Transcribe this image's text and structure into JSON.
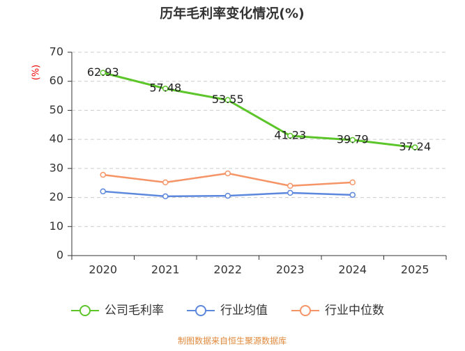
{
  "chart_data": {
    "type": "line",
    "title": "历年毛利率变化情况(%)",
    "y_label": "(%)",
    "categories": [
      "2020",
      "2021",
      "2022",
      "2023",
      "2024",
      "2025"
    ],
    "series": [
      {
        "name": "公司毛利率",
        "color": "#5cc52a",
        "values": [
          62.93,
          57.48,
          53.55,
          41.23,
          39.79,
          37.24
        ],
        "show_labels": true
      },
      {
        "name": "行业均值",
        "color": "#5b87dc",
        "values": [
          22.1,
          20.4,
          20.6,
          21.6,
          20.9,
          null
        ]
      },
      {
        "name": "行业中位数",
        "color": "#f59467",
        "values": [
          27.8,
          25.2,
          28.3,
          24.0,
          25.2,
          null
        ]
      }
    ],
    "ylim": [
      0,
      70
    ],
    "yticks": [
      0,
      10,
      20,
      30,
      40,
      50,
      60,
      70
    ],
    "grid": true,
    "source": "制图数据来自恒生聚源数据库"
  }
}
